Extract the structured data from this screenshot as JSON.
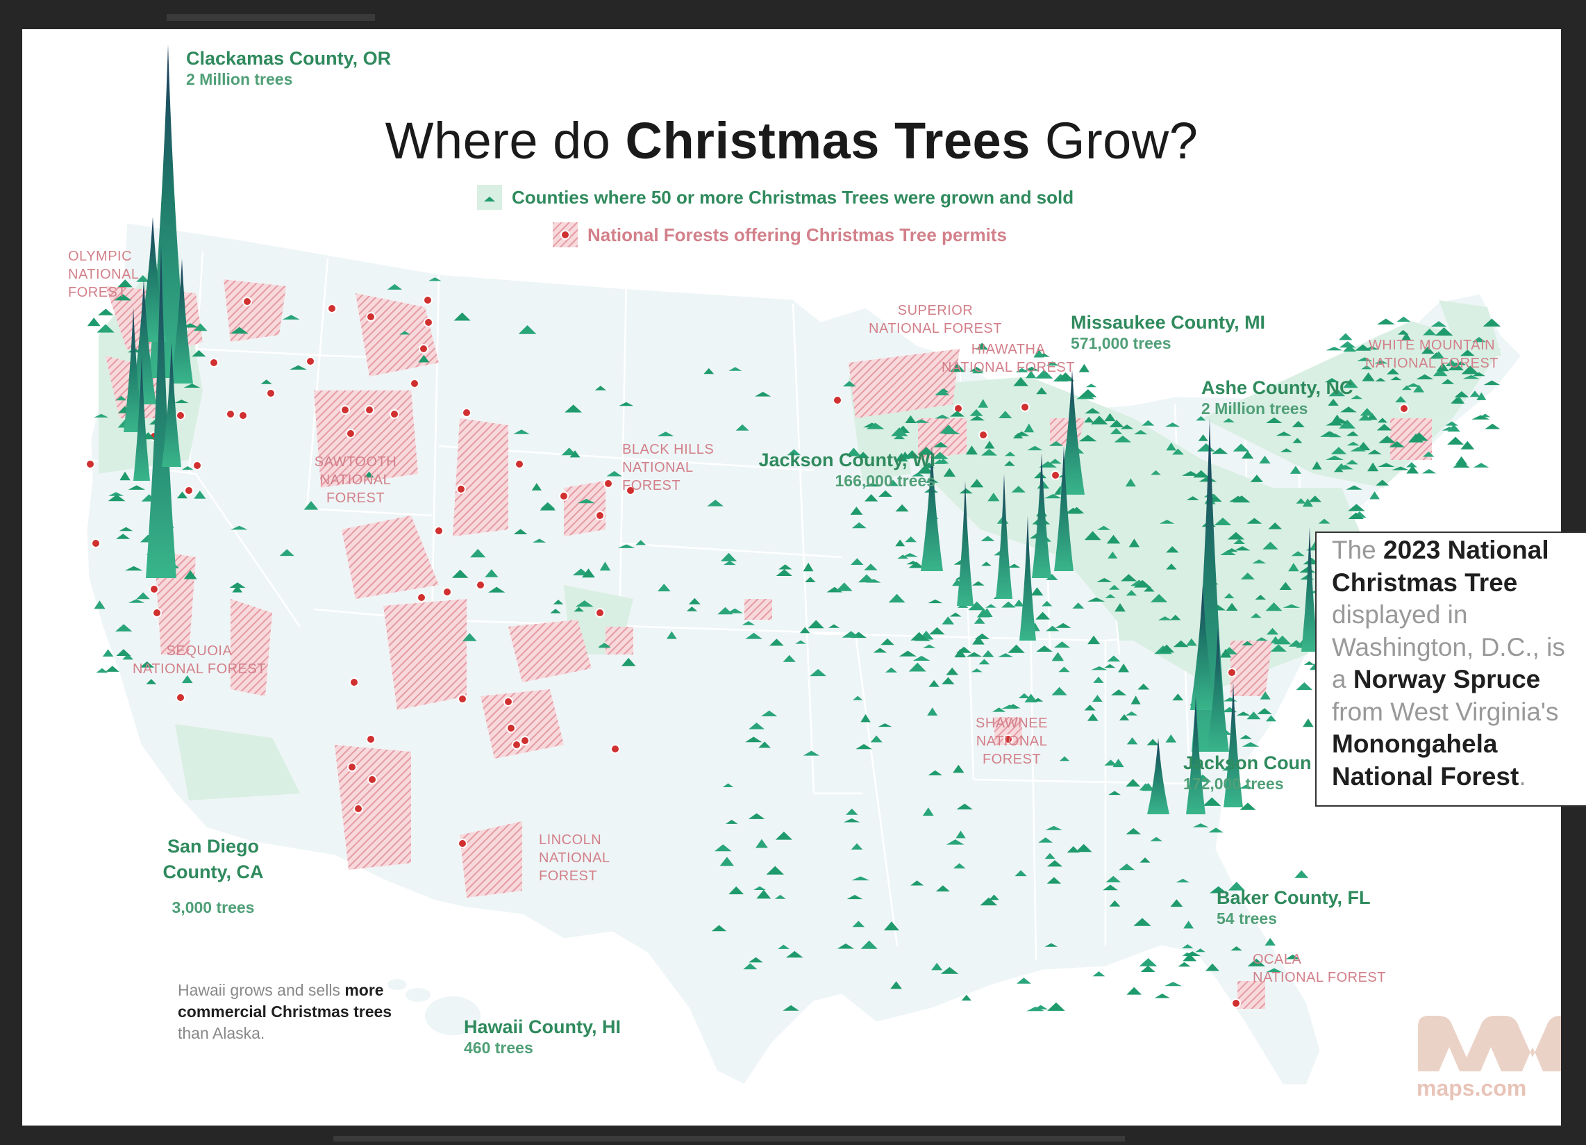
{
  "title": {
    "prefix": "Where do ",
    "bold": "Christmas Trees",
    "suffix": " Grow?"
  },
  "legend": {
    "counties": "Counties where 50 or more Christmas Trees were grown and sold",
    "forests": "National Forests offering Christmas Tree permits"
  },
  "colors": {
    "tree_green": "#1f9a6c",
    "tree_dark": "#1b3a5c",
    "land_green": "#d9efe3",
    "land_base": "#eef5f6",
    "forest_red": "#d94a4a",
    "forest_pink": "#f0b9c0",
    "label_green": "#2f8a5d",
    "label_pink": "#d2808a",
    "frame": "#262626"
  },
  "counties": [
    {
      "name": "Clackamas County, OR",
      "count": "2 Million trees"
    },
    {
      "name": "Missaukee County, MI",
      "count": "571,000 trees"
    },
    {
      "name": "Ashe County, NC",
      "count": "2 Million trees"
    },
    {
      "name": "Jackson County, WI",
      "count": "166,000 trees"
    },
    {
      "name": "Jackson Coun",
      "count": "172,000 trees"
    },
    {
      "name": "San Diego\nCounty, CA",
      "count": "3,000 trees"
    },
    {
      "name": "Baker County, FL",
      "count": "54 trees"
    },
    {
      "name": "Hawaii County, HI",
      "count": "460 trees"
    }
  ],
  "forests": [
    {
      "name": "OLYMPIC\nNATIONAL\nFOREST"
    },
    {
      "name": "SUPERIOR\nNATIONAL FOREST"
    },
    {
      "name": "HIAWATHA\nNATIONAL FOREST"
    },
    {
      "name": "WHITE MOUNTAIN\nNATIONAL FOREST"
    },
    {
      "name": "BLACK HILLS\nNATIONAL\nFOREST"
    },
    {
      "name": "SAWTOOTH\nNATIONAL\nFOREST"
    },
    {
      "name": "SEQUOIA\nNATIONAL FOREST"
    },
    {
      "name": "SHAWNEE\nNATIONAL\nFOREST"
    },
    {
      "name": "LINCOLN\nNATIONAL\nFOREST"
    },
    {
      "name": "OCALA\nNATIONAL FOREST"
    }
  ],
  "note": {
    "lines": [
      [
        {
          "t": "The ",
          "b": false
        },
        {
          "t": "2023 National",
          "b": true
        }
      ],
      [
        {
          "t": "Christmas Tree",
          "b": true
        }
      ],
      [
        {
          "t": "displayed in",
          "b": false
        }
      ],
      [
        {
          "t": "Washington, D.C., is",
          "b": false
        }
      ],
      [
        {
          "t": "a ",
          "b": false
        },
        {
          "t": "Norway Spruce",
          "b": true
        }
      ],
      [
        {
          "t": "from West Virginia's",
          "b": false
        }
      ],
      [
        {
          "t": "Monongahela",
          "b": true
        }
      ],
      [
        {
          "t": "National Forest",
          "b": true
        },
        {
          "t": ".",
          "b": false
        }
      ]
    ]
  },
  "hawaii_note": {
    "pre": "Hawaii grows and sells ",
    "bold1": "more",
    "bold2": "commercial Christmas trees",
    "post": "than Alaska."
  },
  "brand": {
    "text": "maps.com",
    "icon": "maps-com-logo"
  }
}
